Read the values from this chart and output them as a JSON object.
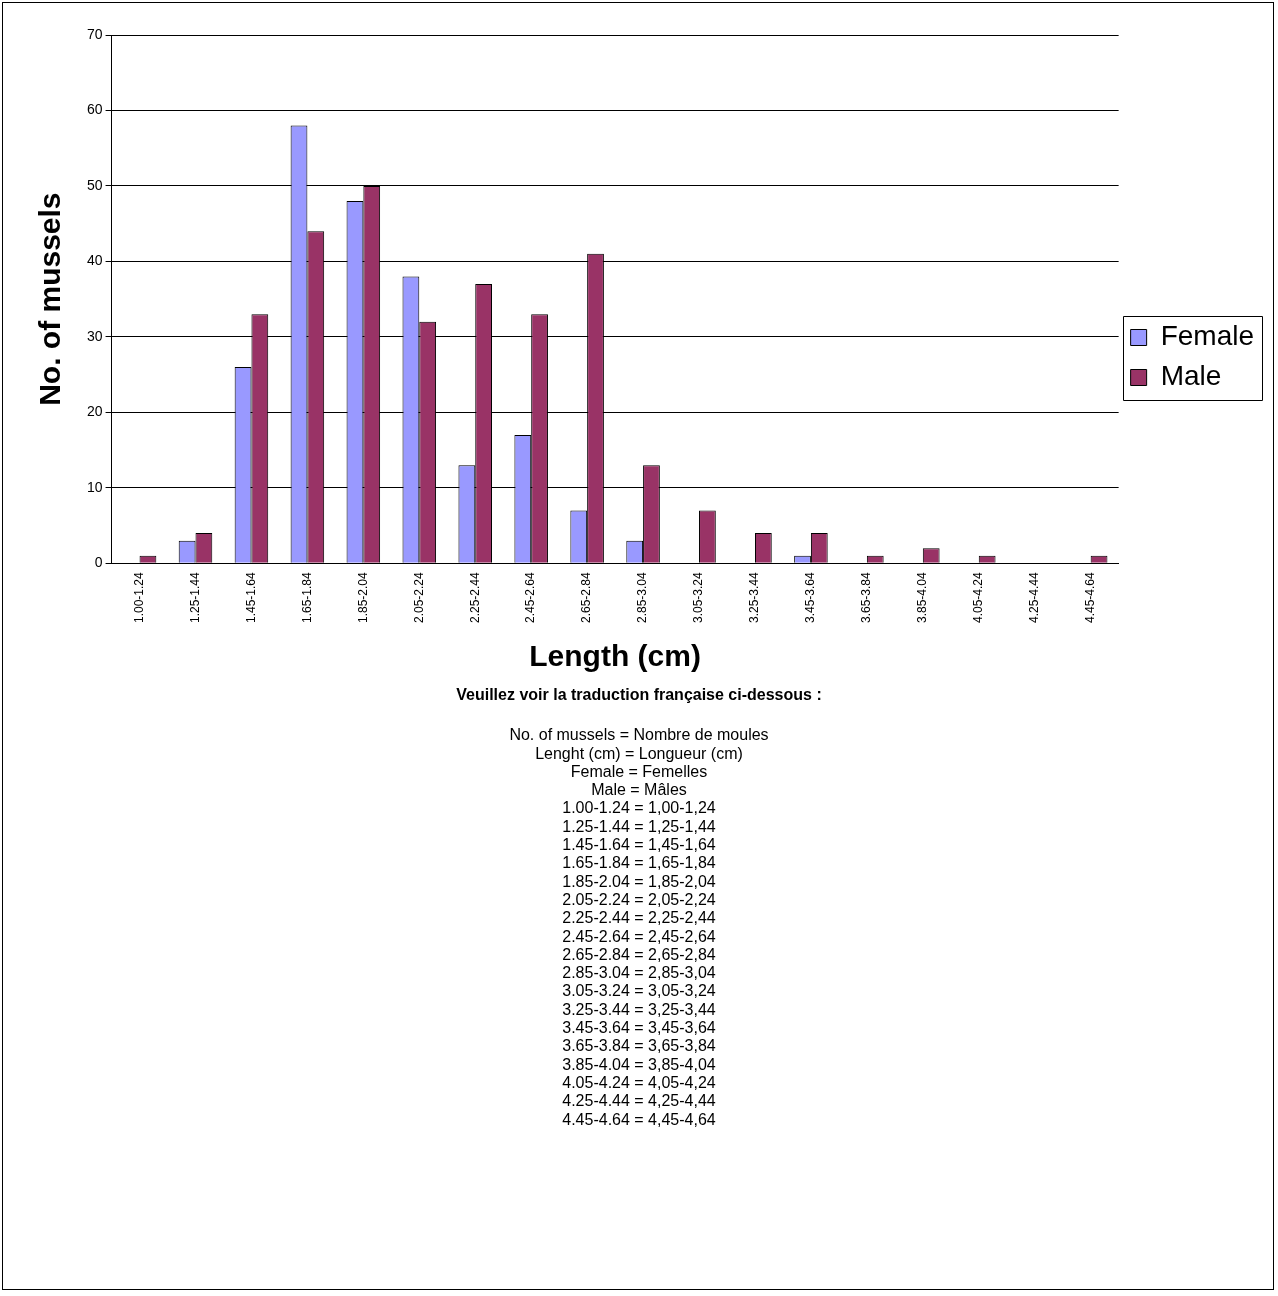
{
  "chart_data": {
    "type": "bar",
    "xlabel": "Length (cm)",
    "ylabel": "No. of mussels",
    "categories": [
      "1.00-1.24",
      "1.25-1.44",
      "1.45-1.64",
      "1.65-1.84",
      "1.85-2.04",
      "2.05-2.24",
      "2.25-2.44",
      "2.45-2.64",
      "2.65-2.84",
      "2.85-3.04",
      "3.05-3.24",
      "3.25-3.44",
      "3.45-3.64",
      "3.65-3.84",
      "3.85-4.04",
      "4.05-4.24",
      "4.25-4.44",
      "4.45-4.64"
    ],
    "series": [
      {
        "name": "Female",
        "color": "#9999ff",
        "values": [
          0,
          3,
          26,
          58,
          48,
          38,
          13,
          17,
          7,
          3,
          0,
          0,
          1,
          0,
          0,
          0,
          0,
          0
        ]
      },
      {
        "name": "Male",
        "color": "#993366",
        "values": [
          1,
          4,
          33,
          44,
          50,
          32,
          37,
          33,
          41,
          13,
          7,
          4,
          4,
          1,
          2,
          1,
          0,
          1
        ]
      }
    ],
    "ylim": [
      0,
      70
    ],
    "yticks": [
      0,
      10,
      20,
      30,
      40,
      50,
      60,
      70
    ],
    "grid": "y",
    "legend": "right",
    "annotations": [
      "Veuillez voir la traduction française ci-dessous :",
      "No. of mussels = Nombre de moules",
      "Lenght (cm) = Longueur (cm)",
      "Female = Femelles",
      "Male = Mâles",
      "1.00-1.24 = 1,00-1,24",
      "1.25-1.44 = 1,25-1,44",
      "1.45-1.64 = 1,45-1,64",
      "1.65-1.84 = 1,65-1,84",
      "1.85-2.04 = 1,85-2,04",
      "2.05-2.24 = 2,05-2,24",
      "2.25-2.44 = 2,25-2,44",
      "2.45-2.64 = 2,45-2,64",
      "2.65-2.84 = 2,65-2,84",
      "2.85-3.04 = 2,85-3,04",
      "3.05-3.24 = 3,05-3,24",
      "3.25-3.44 = 3,25-3,44",
      "3.45-3.64 = 3,45-3,64",
      "3.65-3.84 = 3,65-3,84",
      "3.85-4.04 = 3,85-4,04",
      "4.05-4.24 = 4,05-4,24",
      "4.25-4.44 = 4,25-4,44",
      "4.45-4.64 = 4,45-4,64"
    ]
  }
}
